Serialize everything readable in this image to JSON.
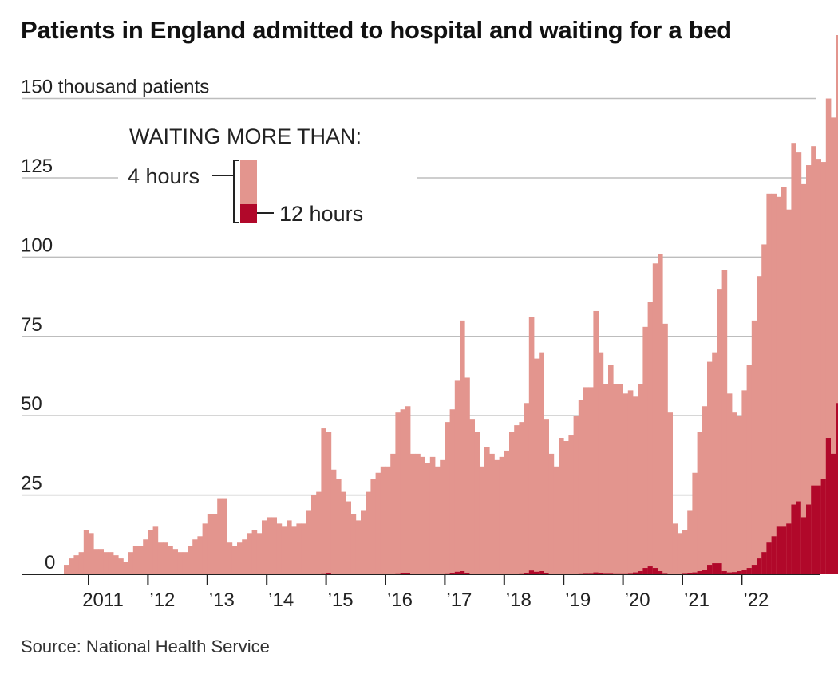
{
  "source": "Source: National Health Service",
  "chart_data": {
    "type": "bar",
    "title": "Patients in England admitted to hospital and waiting for a bed",
    "ylabel_unit": "thousand patients",
    "ylim": [
      0,
      170
    ],
    "yticks": [
      0,
      25,
      50,
      75,
      100,
      125,
      150
    ],
    "y_tick_labels": [
      "0",
      "25",
      "50",
      "75",
      "100",
      "125",
      "150 thousand patients"
    ],
    "x_tick_labels": [
      "2011",
      "’12",
      "’13",
      "’14",
      "’15",
      "’16",
      "’17",
      "’18",
      "’19",
      "’20",
      "’21",
      "’22"
    ],
    "legend": {
      "heading": "WAITING MORE THAN:",
      "items": [
        "4 hours",
        "12 hours"
      ]
    },
    "colors": {
      "four_hours": "#e3958e",
      "twelve_hours": "#b1082a",
      "grid": "#bdbdbd",
      "axis": "#222222"
    },
    "start_month": "2010-08",
    "series": [
      {
        "name": "4 hours",
        "values": [
          3,
          5,
          6,
          7,
          14,
          13,
          8,
          8,
          7,
          7,
          6,
          5,
          4,
          7,
          9,
          9,
          11,
          14,
          15,
          10,
          10,
          9,
          8,
          7,
          7,
          9,
          11,
          12,
          16,
          19,
          19,
          24,
          24,
          10,
          9,
          10,
          11,
          13,
          14,
          13,
          17,
          18,
          18,
          16,
          15,
          17,
          15,
          16,
          16,
          20,
          25,
          26,
          46,
          45,
          33,
          30,
          26,
          23,
          19,
          17,
          20,
          26,
          30,
          32,
          34,
          34,
          38,
          51,
          52,
          53,
          38,
          38,
          37,
          35,
          37,
          34,
          36,
          48,
          52,
          61,
          80,
          62,
          49,
          45,
          34,
          40,
          38,
          36,
          37,
          39,
          45,
          47,
          48,
          54,
          81,
          68,
          70,
          49,
          38,
          34,
          43,
          42,
          44,
          50,
          55,
          59,
          59,
          83,
          70,
          60,
          66,
          60,
          60,
          57,
          58,
          56,
          60,
          78,
          86,
          98,
          101,
          79,
          51,
          16,
          13,
          14,
          20,
          32,
          45,
          53,
          67,
          70,
          90,
          96,
          57,
          51,
          50,
          58,
          66,
          80,
          94,
          104,
          120,
          120,
          119,
          122,
          115,
          136,
          133,
          123,
          129,
          135,
          131,
          130,
          150,
          144,
          170
        ]
      },
      {
        "name": "12 hours",
        "values": [
          0,
          0,
          0,
          0,
          0,
          0,
          0,
          0,
          0,
          0,
          0,
          0,
          0,
          0,
          0,
          0,
          0,
          0,
          0,
          0,
          0,
          0,
          0,
          0,
          0,
          0,
          0,
          0,
          0,
          0,
          0,
          0,
          0,
          0,
          0,
          0,
          0,
          0,
          0,
          0,
          0,
          0,
          0,
          0,
          0,
          0,
          0,
          0,
          0,
          0,
          0,
          0,
          0.3,
          0.5,
          0.2,
          0,
          0,
          0,
          0,
          0,
          0,
          0,
          0,
          0,
          0,
          0,
          0,
          0.3,
          0.5,
          0.5,
          0,
          0,
          0,
          0,
          0,
          0,
          0,
          0.3,
          0.5,
          0.8,
          1,
          0.5,
          0.2,
          0,
          0,
          0,
          0,
          0,
          0,
          0,
          0,
          0,
          0.3,
          0.5,
          1.2,
          0.8,
          1,
          0.5,
          0,
          0,
          0,
          0,
          0,
          0.2,
          0.3,
          0.4,
          0.4,
          0.6,
          0.5,
          0.4,
          0.4,
          0.3,
          0.3,
          0.3,
          0.4,
          0.6,
          1,
          2,
          2.5,
          2,
          1,
          0.4,
          0.2,
          0.1,
          0.2,
          0.4,
          0.5,
          0.6,
          1,
          1.5,
          3,
          3.5,
          3.5,
          1,
          0.6,
          0.7,
          1,
          1.3,
          2,
          3,
          5,
          7,
          10,
          12,
          15,
          15,
          16,
          22,
          23,
          18,
          22,
          28,
          28,
          30,
          43,
          38,
          54
        ]
      }
    ]
  }
}
